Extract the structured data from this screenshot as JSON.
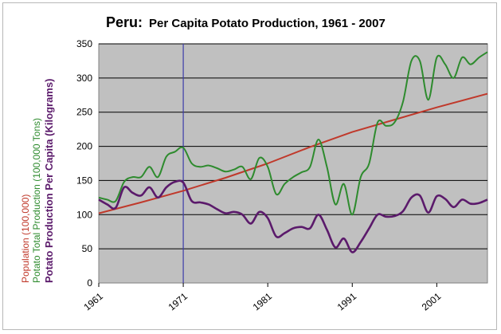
{
  "chart_data": {
    "type": "line",
    "title_country": "Peru",
    "title_sep": ":",
    "title": "Per Capita Potato Production, 1961 - 2007",
    "ylabels": [
      {
        "text": "Population (100,000)",
        "color": "#c0392b"
      },
      {
        "text": "Potato Total Production (100,000 Tons)",
        "color": "#2e8b2e"
      },
      {
        "text": "Potato Production Per Capita (Kilograms)",
        "color": "#5b1a6b"
      }
    ],
    "ylim": [
      0,
      350
    ],
    "yticks": [
      "0",
      "50",
      "100",
      "150",
      "200",
      "250",
      "300",
      "350"
    ],
    "xlim": [
      1961,
      2007
    ],
    "xticks": [
      "1961",
      "1971",
      "1981",
      "1991",
      "2001"
    ],
    "vertical_marker_x": 1971,
    "grid": "horizontal",
    "plot_background": "#c0c0c0",
    "series": [
      {
        "key": "population",
        "color": "#c0392b",
        "x": [
          1961,
          1966,
          1971,
          1976,
          1981,
          1986,
          1991,
          1996,
          2001,
          2007
        ],
        "values": [
          102,
          118,
          135,
          154,
          175,
          199,
          221,
          239,
          257,
          277
        ]
      },
      {
        "key": "total",
        "color": "#2e8b2e",
        "x": [
          1961,
          1962,
          1963,
          1964,
          1965,
          1966,
          1967,
          1968,
          1969,
          1970,
          1971,
          1972,
          1973,
          1974,
          1975,
          1976,
          1977,
          1978,
          1979,
          1980,
          1981,
          1982,
          1983,
          1984,
          1985,
          1986,
          1987,
          1988,
          1989,
          1990,
          1991,
          1992,
          1993,
          1994,
          1995,
          1996,
          1997,
          1998,
          1999,
          2000,
          2001,
          2002,
          2003,
          2004,
          2005,
          2006,
          2007
        ],
        "values": [
          125,
          122,
          120,
          148,
          155,
          155,
          170,
          155,
          185,
          192,
          198,
          175,
          170,
          172,
          168,
          163,
          166,
          170,
          152,
          183,
          170,
          130,
          145,
          155,
          162,
          170,
          210,
          170,
          115,
          145,
          100,
          155,
          175,
          235,
          230,
          235,
          265,
          325,
          325,
          268,
          330,
          320,
          300,
          330,
          320,
          330,
          338
        ]
      },
      {
        "key": "per_capita",
        "color": "#5b1a6b",
        "x": [
          1961,
          1962,
          1963,
          1964,
          1965,
          1966,
          1967,
          1968,
          1969,
          1970,
          1971,
          1972,
          1973,
          1974,
          1975,
          1976,
          1977,
          1978,
          1979,
          1980,
          1981,
          1982,
          1983,
          1984,
          1985,
          1986,
          1987,
          1988,
          1989,
          1990,
          1991,
          1992,
          1993,
          1994,
          1995,
          1996,
          1997,
          1998,
          1999,
          2000,
          2001,
          2002,
          2003,
          2004,
          2005,
          2006,
          2007
        ],
        "values": [
          122,
          115,
          110,
          140,
          132,
          128,
          140,
          125,
          140,
          148,
          147,
          120,
          118,
          115,
          108,
          102,
          104,
          100,
          87,
          104,
          95,
          68,
          73,
          80,
          82,
          80,
          100,
          78,
          52,
          65,
          45,
          60,
          80,
          100,
          97,
          98,
          105,
          125,
          128,
          103,
          127,
          123,
          111,
          122,
          116,
          117,
          122
        ]
      }
    ]
  }
}
